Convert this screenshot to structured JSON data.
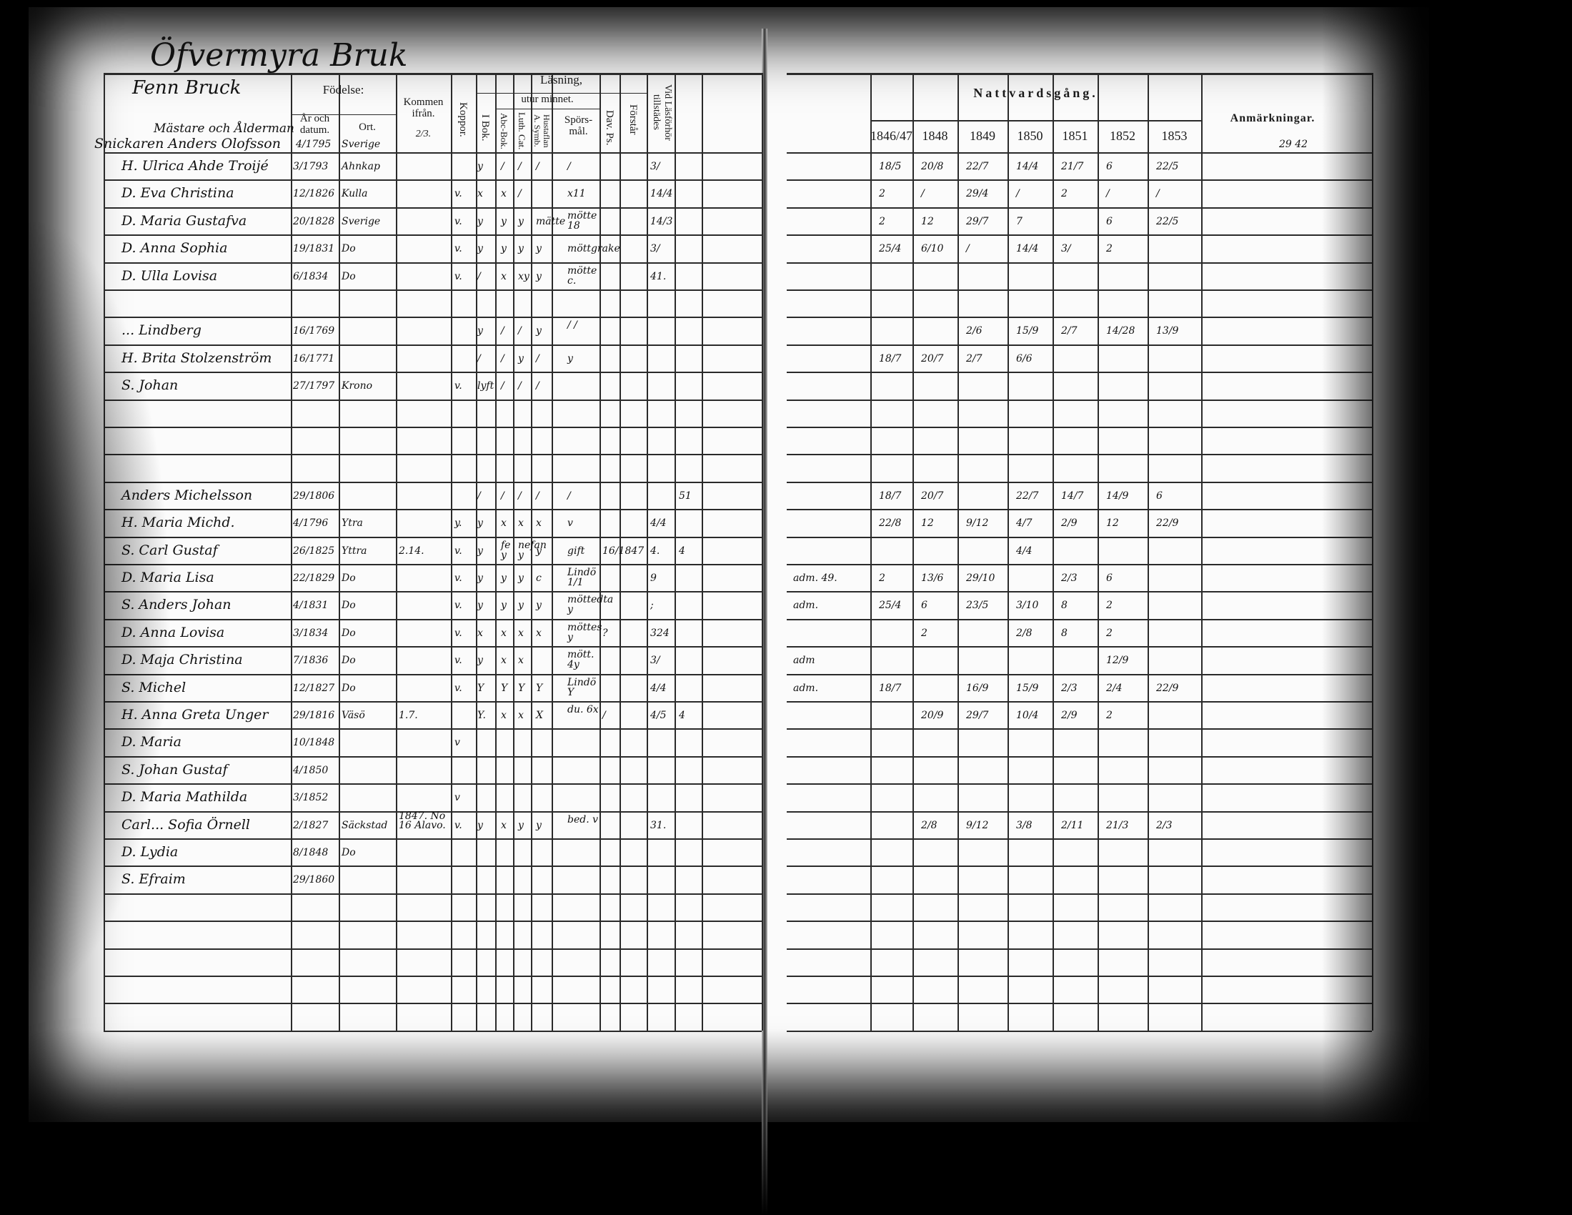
{
  "title": "Öfvermyra Bruk",
  "left_header": {
    "section_note": "Fenn Bruck",
    "section_sub": "Mästare och Ålderman",
    "fodelse": "Födelse:",
    "ar_och_datum": "År och datum.",
    "ort": "Ort.",
    "kommen_ifran": "Kommen ifrån.",
    "kommen_note": "2/3.",
    "koppor": "Koppor.",
    "lasning": "Läsning,",
    "utur_minnet": "utur minnet.",
    "i_bok": "I Bok.",
    "abc_bok": "Abc-Bok.",
    "luth_cat": "Luth. Cat.",
    "hustaflan": "Hustaflan A. Symb.",
    "sporsmal": "Spörs-mål.",
    "dav_ps": "Dav. Ps.",
    "forstar": "Förstår",
    "vid_lasforhor": "Vid Läsförhör tillstädes"
  },
  "right_header": {
    "nattvardsgang": "Nattvardsgång.",
    "years": [
      "1846/47",
      "1848",
      "1849",
      "1850",
      "1851",
      "1852",
      "1853"
    ],
    "anmarkningar": "Anmärkningar.",
    "anm_note": "29 42"
  },
  "first_entry": {
    "name": "Snickaren Anders Olofsson",
    "datum": "4/1795",
    "ort": "Sverige"
  },
  "rows": [
    {
      "name": "H. Ulrica Ahde Troijé",
      "datum": "3/1793",
      "ort": "Ahnkap",
      "ibok": "y",
      "abc": "/",
      "luth": "/",
      "hust": "/",
      "spors": "/",
      "vid": "3/",
      "natt": [
        "18/5",
        "20/8",
        "22/7",
        "14/4",
        "21/7",
        "6",
        "22/5"
      ]
    },
    {
      "name": "D. Eva Christina",
      "datum": "12/1826",
      "ort": "Kulla",
      "koppor": "v.",
      "ibok": "x",
      "abc": "x",
      "luth": "/",
      "spors": "x11",
      "vid": "14/4",
      "adm": "",
      "natt": [
        "2",
        "/",
        "29/4",
        "/",
        "2",
        "/",
        "/"
      ]
    },
    {
      "name": "D. Maria Gustafva",
      "datum": "20/1828",
      "ort": "Sverige",
      "koppor": "v.",
      "ibok": "y",
      "abc": "y",
      "luth": "y",
      "hust": "mätte",
      "spors": "mötte 18",
      "vid": "14/3",
      "natt": [
        "2",
        "12",
        "29/7",
        "7",
        "",
        "6",
        "22/5"
      ]
    },
    {
      "name": "D. Anna Sophia",
      "datum": "19/1831",
      "ort": "Do",
      "koppor": "v.",
      "ibok": "y",
      "abc": "y",
      "luth": "y",
      "hust": "y",
      "spors": "möttgrake",
      "vid": "3/",
      "natt": [
        "25/4",
        "6/10",
        "/",
        "14/4",
        "3/",
        "2",
        ""
      ]
    },
    {
      "name": "D. Ulla Lovisa",
      "datum": "6/1834",
      "ort": "Do",
      "koppor": "v.",
      "ibok": "/",
      "abc": "x",
      "luth": "xy",
      "hust": "y",
      "spors": "mötte c.",
      "vid": "41."
    },
    {
      "name": ""
    },
    {
      "name": "... Lindberg",
      "datum": "16/1769",
      "ibok": "y",
      "abc": "/",
      "luth": "/",
      "hust": "y",
      "spors": "/ /",
      "natt": [
        "",
        "",
        "2/6",
        "15/9",
        "2/7",
        "14/28",
        "13/9"
      ]
    },
    {
      "name": "H. Brita Stolzenström",
      "datum": "16/1771",
      "ibok": "/",
      "abc": "/",
      "luth": "y",
      "hust": "/",
      "spors": "y",
      "natt": [
        "18/7",
        "20/7",
        "2/7",
        "6/6",
        "",
        "",
        ""
      ]
    },
    {
      "name": "S. Johan",
      "datum": "27/1797",
      "ort": "Krono",
      "koppor": "v.",
      "ibok": "lyft",
      "abc": "/",
      "luth": "/",
      "hust": "/"
    },
    {
      "name": ""
    },
    {
      "name": ""
    },
    {
      "name": ""
    },
    {
      "name": "Anders Michelsson",
      "datum": "29/1806",
      "ibok": "/",
      "abc": "/",
      "luth": "/",
      "hust": "/",
      "spors": "/",
      "extra": "51",
      "natt": [
        "18/7",
        "20/7",
        "",
        "22/7",
        "14/7",
        "14/9",
        "6"
      ]
    },
    {
      "name": "H. Maria Michd.",
      "datum": "4/1796",
      "ort": "Ytra",
      "koppor": "y.",
      "ibok": "y",
      "abc": "x",
      "luth": "x",
      "hust": "x",
      "spors": "v",
      "vid": "4/4",
      "natt": [
        "22/8",
        "12",
        "9/12",
        "4/7",
        "2/9",
        "12",
        "22/9"
      ]
    },
    {
      "name": "S. Carl Gustaf",
      "datum": "26/1825",
      "ort": "Yttra",
      "kommen": "2.14.",
      "koppor": "v.",
      "ibok": "y",
      "abc": "fe y",
      "luth": "nefan y",
      "hust": "y",
      "spors": "gift",
      "dav": "16/1847",
      "vid": "4.",
      "extra": "4",
      "natt": [
        "",
        "",
        "",
        "4/4",
        "",
        "",
        ""
      ]
    },
    {
      "name": "D. Maria Lisa",
      "datum": "22/1829",
      "ort": "Do",
      "koppor": "v.",
      "ibok": "y",
      "abc": "y",
      "luth": "y",
      "hust": "c",
      "spors": "Lindö 1/1",
      "vid": "9",
      "adm": "adm. 49.",
      "natt": [
        "2",
        "13/6",
        "29/10",
        "",
        "2/3",
        "6",
        ""
      ]
    },
    {
      "name": "S. Anders Johan",
      "datum": "4/1831",
      "ort": "Do",
      "koppor": "v.",
      "ibok": "y",
      "abc": "y",
      "luth": "y",
      "hust": "y",
      "spors": "möttedta y",
      "vid": ";",
      "adm": "adm.",
      "natt": [
        "25/4",
        "6",
        "23/5",
        "3/10",
        "8",
        "2",
        ""
      ]
    },
    {
      "name": "D. Anna Lovisa",
      "datum": "3/1834",
      "ort": "Do",
      "koppor": "v.",
      "ibok": "x",
      "abc": "x",
      "luth": "x",
      "hust": "x",
      "spors": "möttes y",
      "dav": "?",
      "vid": "324",
      "natt": [
        "",
        "2",
        "",
        "2/8",
        "8",
        "2",
        ""
      ]
    },
    {
      "name": "D. Maja Christina",
      "datum": "7/1836",
      "ort": "Do",
      "koppor": "v.",
      "ibok": "y",
      "abc": "x",
      "luth": "x",
      "spors": "mött. 4y",
      "vid": "3/",
      "adm": "adm",
      "natt": [
        "",
        "",
        "",
        "",
        "",
        "12/9",
        ""
      ]
    },
    {
      "name": "S. Michel",
      "datum": "12/1827",
      "ort": "Do",
      "koppor": "v.",
      "ibok": "Y",
      "abc": "Y",
      "luth": "Y",
      "hust": "Y",
      "spors": "Lindö Y",
      "vid": "4/4",
      "adm": "adm.",
      "natt": [
        "18/7",
        "",
        "16/9",
        "15/9",
        "2/3",
        "2/4",
        "22/9"
      ]
    },
    {
      "name": "H. Anna Greta Unger",
      "datum": "29/1816",
      "ort": "Väsö",
      "kommen": "1.7.",
      "koppor": "",
      "ibok": "Y.",
      "abc": "x",
      "luth": "x",
      "hust": "X",
      "spors": "du. 6x",
      "dav": "/",
      "vid": "4/5",
      "extra": "4",
      "natt": [
        "",
        "20/9",
        "29/7",
        "10/4",
        "2/9",
        "2",
        ""
      ]
    },
    {
      "name": "D. Maria",
      "datum": "10/1848",
      "koppor": "v"
    },
    {
      "name": "S. Johan Gustaf",
      "datum": "4/1850"
    },
    {
      "name": "D. Maria Mathilda",
      "datum": "3/1852",
      "koppor": "v"
    },
    {
      "name": "Carl... Sofia Örnell",
      "datum": "2/1827",
      "ort": "Säckstad",
      "kommen": "1847. No 16 Alavo.",
      "koppor": "v.",
      "ibok": "y",
      "abc": "x",
      "luth": "y",
      "hust": "y",
      "spors": "bed. v",
      "vid": "31.",
      "natt": [
        "",
        "2/8",
        "9/12",
        "3/8",
        "2/11",
        "21/3",
        "2/3"
      ]
    },
    {
      "name": "D. Lydia",
      "datum": "8/1848",
      "ort": "Do"
    },
    {
      "name": "S. Efraim",
      "datum": "29/1860"
    },
    {
      "name": ""
    },
    {
      "name": ""
    },
    {
      "name": ""
    },
    {
      "name": ""
    },
    {
      "name": ""
    }
  ]
}
